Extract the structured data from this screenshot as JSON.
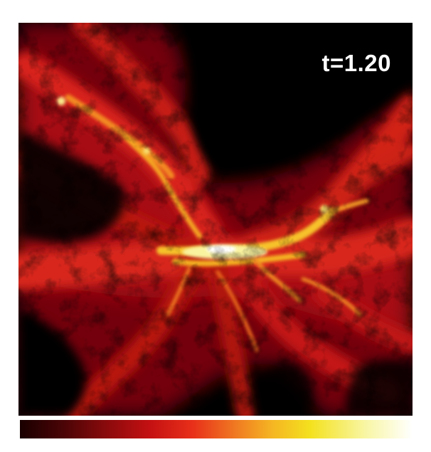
{
  "figure": {
    "time_label": "t=1.20"
  },
  "colors": {
    "background": "#000000",
    "colormap": [
      "#1a0000",
      "#4a0406",
      "#8a0a0c",
      "#c41012",
      "#e8301a",
      "#f07a22",
      "#f5b423",
      "#f4e11e",
      "#f8f6a4",
      "#ffffff"
    ]
  }
}
